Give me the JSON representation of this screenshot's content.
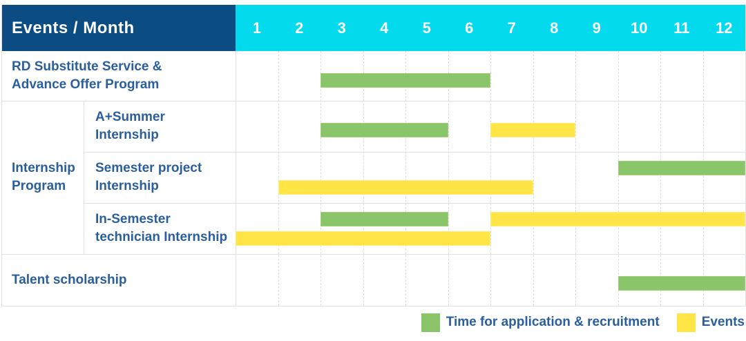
{
  "header": {
    "title": "Events / Month",
    "months": [
      "1",
      "2",
      "3",
      "4",
      "5",
      "6",
      "7",
      "8",
      "9",
      "10",
      "11",
      "12"
    ]
  },
  "chart_data": {
    "type": "gantt",
    "x_unit": "month",
    "x_range": [
      1,
      12
    ],
    "bar_kinds": {
      "application": "Time for application & recruitment",
      "event": "Events"
    },
    "rows": [
      {
        "label_lines": [
          "RD Substitute Service &",
          "Advance Offer Program"
        ],
        "group": null,
        "bars": [
          {
            "kind": "application",
            "from": 3,
            "to": 6,
            "lane": "single"
          }
        ]
      },
      {
        "label_lines": [
          "A+Summer",
          "Internship"
        ],
        "group": "Internship Program",
        "bars": [
          {
            "kind": "application",
            "from": 3,
            "to": 5,
            "lane": "single"
          },
          {
            "kind": "event",
            "from": 7,
            "to": 8,
            "lane": "single"
          }
        ]
      },
      {
        "label_lines": [
          "Semester project",
          "Internship"
        ],
        "group": "Internship Program",
        "bars": [
          {
            "kind": "application",
            "from": 10,
            "to": 12,
            "lane": "top"
          },
          {
            "kind": "event",
            "from": 2,
            "to": 7,
            "lane": "bottom"
          }
        ]
      },
      {
        "label_lines": [
          "In-Semester",
          "technician Internship"
        ],
        "group": "Internship Program",
        "bars": [
          {
            "kind": "application",
            "from": 3,
            "to": 5,
            "lane": "top"
          },
          {
            "kind": "event",
            "from": 7,
            "to": 12,
            "lane": "top"
          },
          {
            "kind": "event",
            "from": 1,
            "to": 6,
            "lane": "bottom"
          }
        ]
      },
      {
        "label_lines": [
          "Talent scholarship"
        ],
        "group": null,
        "bars": [
          {
            "kind": "application",
            "from": 10,
            "to": 12,
            "lane": "single"
          }
        ]
      }
    ],
    "groups": [
      {
        "label_lines": [
          "Internship",
          "Program"
        ],
        "first_row": 1,
        "last_row": 3
      }
    ],
    "legend": [
      {
        "kind": "application",
        "label": "Time for application & recruitment"
      },
      {
        "kind": "event",
        "label": "Events"
      }
    ]
  },
  "colors": {
    "header_navy": "#0b4d83",
    "header_cyan": "#04daee",
    "application_green": "#8bc56a",
    "event_yellow": "#ffe545",
    "label_text_blue": "#2b5e9c",
    "grid_line": "#dee2e6"
  }
}
